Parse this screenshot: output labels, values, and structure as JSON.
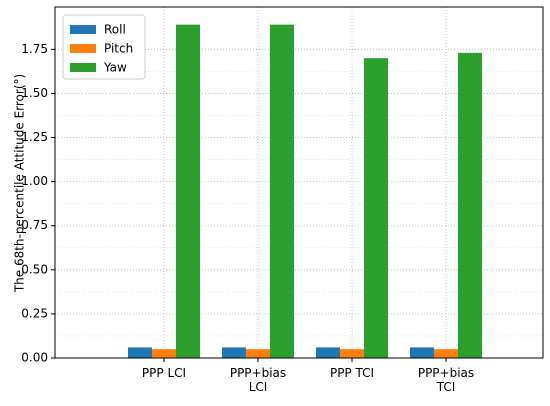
{
  "chart_data": {
    "type": "grouped_bar",
    "y_label": "The 68th-percentile Attitude Error(°)",
    "categories": [
      "PPP LCI",
      "PPP+bias\nLCI",
      "PPP TCI",
      "PPP+bias\nTCI"
    ],
    "series": [
      {
        "name": "Roll",
        "color": "#1f77b4",
        "values": [
          0.06,
          0.06,
          0.06,
          0.06
        ]
      },
      {
        "name": "Pitch",
        "color": "#ff7f0e",
        "values": [
          0.05,
          0.05,
          0.05,
          0.05
        ]
      },
      {
        "name": "Yaw",
        "color": "#2ca02c",
        "values": [
          1.89,
          1.89,
          1.7,
          1.73
        ]
      }
    ],
    "ylim": [
      0,
      1.99
    ],
    "yticks": [
      {
        "value": 0,
        "label": "0.00"
      },
      {
        "value": 0.25,
        "label": "0.25"
      },
      {
        "value": 0.5,
        "label": "0.50"
      },
      {
        "value": 0.75,
        "label": "0.75"
      },
      {
        "value": 1,
        "label": "1.00"
      },
      {
        "value": 1.25,
        "label": "1.25"
      },
      {
        "value": 1.5,
        "label": "1.50"
      },
      {
        "value": 1.75,
        "label": "1.75"
      }
    ],
    "grid": true,
    "legend": "upper left"
  }
}
